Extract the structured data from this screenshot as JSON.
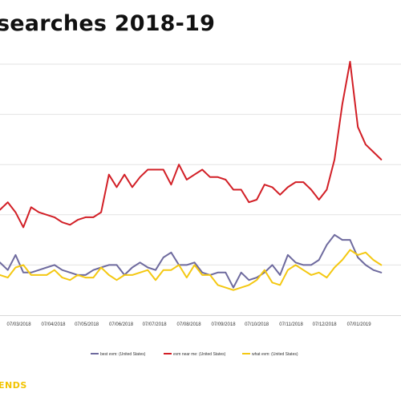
{
  "title": "searches 2018-19",
  "brand": "ENDS",
  "colors": {
    "best_evm": "#6e6a9e",
    "evm_near_me": "#d21f26",
    "what_evm": "#f4c812",
    "grid": "#e3e3e3",
    "brand": "#f2c300"
  },
  "chart_data": {
    "type": "line",
    "x_tick_labels": [
      "07/03/2018",
      "07/04/2018",
      "07/05/2018",
      "07/06/2018",
      "07/07/2018",
      "07/08/2018",
      "07/09/2018",
      "07/10/2018",
      "07/11/2018",
      "07/12/2018",
      "07/01/2019"
    ],
    "x": [
      "2018-02-18",
      "2018-02-25",
      "2018-03-04",
      "2018-03-11",
      "2018-03-18",
      "2018-03-25",
      "2018-04-01",
      "2018-04-08",
      "2018-04-15",
      "2018-04-22",
      "2018-04-29",
      "2018-05-06",
      "2018-05-13",
      "2018-05-20",
      "2018-05-27",
      "2018-06-03",
      "2018-06-10",
      "2018-06-17",
      "2018-06-24",
      "2018-07-01",
      "2018-07-08",
      "2018-07-15",
      "2018-07-22",
      "2018-07-29",
      "2018-08-05",
      "2018-08-12",
      "2018-08-19",
      "2018-08-26",
      "2018-09-02",
      "2018-09-09",
      "2018-09-16",
      "2018-09-23",
      "2018-09-30",
      "2018-10-07",
      "2018-10-14",
      "2018-10-21",
      "2018-10-28",
      "2018-11-04",
      "2018-11-11",
      "2018-11-18",
      "2018-11-25",
      "2018-12-02",
      "2018-12-09",
      "2018-12-16",
      "2018-12-23",
      "2018-12-30",
      "2019-01-06",
      "2019-01-13",
      "2019-01-20",
      "2019-01-27"
    ],
    "ylim": [
      0,
      100
    ],
    "grid": true,
    "legend_position": "bottom",
    "series": [
      {
        "name": "best evm: (United States)",
        "color": "#6e6a9e",
        "values": [
          21,
          18,
          24,
          17,
          17,
          18,
          19,
          20,
          18,
          17,
          16,
          16,
          18,
          19,
          20,
          20,
          16,
          19,
          21,
          19,
          18,
          23,
          25,
          20,
          20,
          21,
          17,
          16,
          17,
          17,
          11,
          17,
          14,
          15,
          17,
          20,
          16,
          24,
          21,
          20,
          20,
          22,
          28,
          32,
          30,
          30,
          23,
          20,
          18,
          17
        ]
      },
      {
        "name": "evm near me: (United States)",
        "color": "#d21f26",
        "values": [
          42,
          45,
          41,
          35,
          43,
          41,
          40,
          39,
          37,
          36,
          38,
          39,
          39,
          41,
          56,
          51,
          56,
          51,
          55,
          58,
          58,
          58,
          52,
          60,
          54,
          56,
          58,
          55,
          55,
          54,
          50,
          50,
          45,
          46,
          52,
          51,
          48,
          51,
          53,
          53,
          50,
          46,
          50,
          62,
          84,
          101,
          75,
          68,
          65,
          62
        ]
      },
      {
        "name": "what evm: (United States)",
        "color": "#f4c812",
        "values": [
          16,
          15,
          19,
          20,
          16,
          16,
          16,
          18,
          15,
          14,
          16,
          15,
          15,
          19,
          16,
          14,
          16,
          16,
          17,
          18,
          14,
          18,
          18,
          20,
          15,
          20,
          16,
          16,
          12,
          11,
          10,
          11,
          12,
          14,
          18,
          13,
          12,
          18,
          20,
          18,
          16,
          17,
          15,
          19,
          22,
          26,
          24,
          25,
          22,
          20
        ]
      }
    ]
  }
}
